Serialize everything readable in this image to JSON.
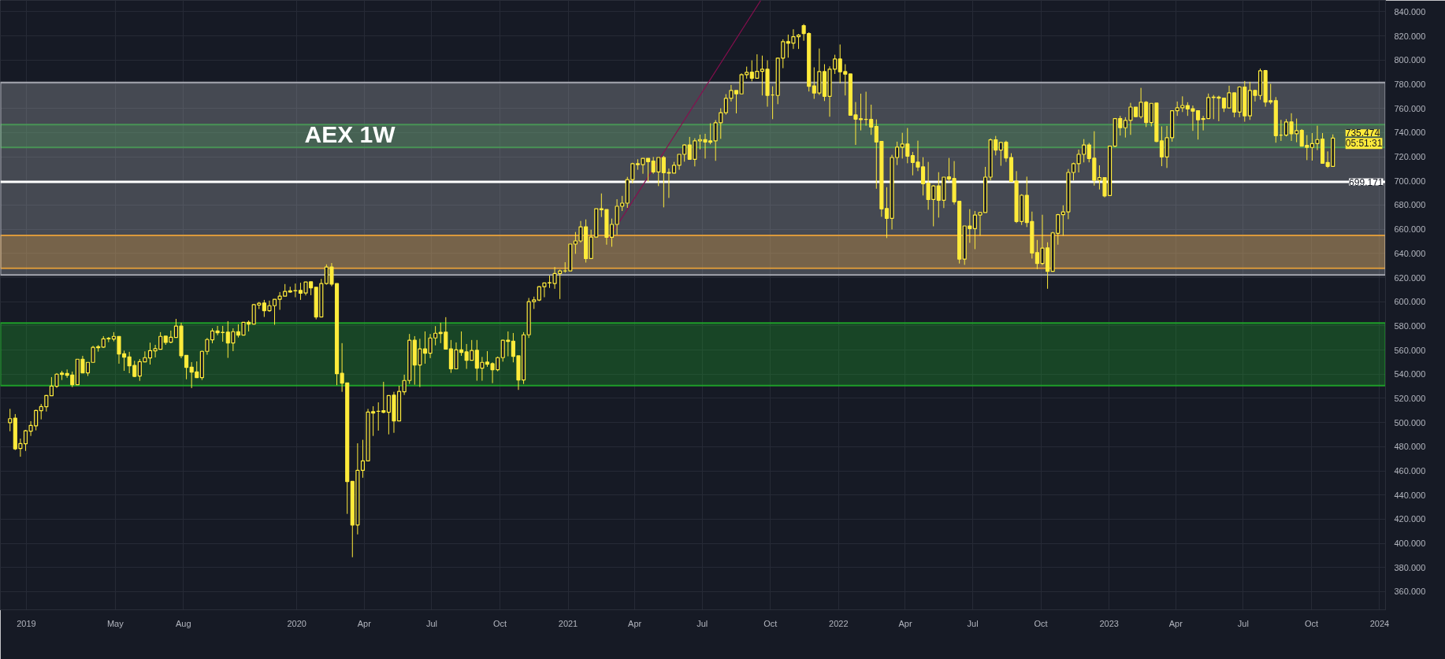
{
  "chart_data": {
    "type": "candlestick",
    "title": "AEX 1W",
    "color": "#ffeb3b",
    "grid": true,
    "xlim": [
      "2018-11-27",
      "2024-01-09"
    ],
    "ylim": [
      345,
      849.4
    ],
    "xticks": [
      {
        "value": "2019-01-01",
        "label": "2019"
      },
      {
        "value": "2019-05-01",
        "label": "May"
      },
      {
        "value": "2019-08-01",
        "label": "Aug"
      },
      {
        "value": "2020-01-01",
        "label": "2020"
      },
      {
        "value": "2020-04-01",
        "label": "Apr"
      },
      {
        "value": "2020-07-01",
        "label": "Jul"
      },
      {
        "value": "2020-10-01",
        "label": "Oct"
      },
      {
        "value": "2021-01-01",
        "label": "2021"
      },
      {
        "value": "2021-04-01",
        "label": "Apr"
      },
      {
        "value": "2021-07-01",
        "label": "Jul"
      },
      {
        "value": "2021-10-01",
        "label": "Oct"
      },
      {
        "value": "2022-01-01",
        "label": "2022"
      },
      {
        "value": "2022-04-01",
        "label": "Apr"
      },
      {
        "value": "2022-07-01",
        "label": "Jul"
      },
      {
        "value": "2022-10-01",
        "label": "Oct"
      },
      {
        "value": "2023-01-01",
        "label": "2023"
      },
      {
        "value": "2023-04-01",
        "label": "Apr"
      },
      {
        "value": "2023-07-01",
        "label": "Jul"
      },
      {
        "value": "2023-10-01",
        "label": "Oct"
      },
      {
        "value": "2024-01-01",
        "label": "2024"
      }
    ],
    "yticks": [
      {
        "value": 360,
        "label": "360.000"
      },
      {
        "value": 380,
        "label": "380.000"
      },
      {
        "value": 400,
        "label": "400.000"
      },
      {
        "value": 420,
        "label": "420.000"
      },
      {
        "value": 440,
        "label": "440.000"
      },
      {
        "value": 460,
        "label": "460.000"
      },
      {
        "value": 480,
        "label": "480.000"
      },
      {
        "value": 500,
        "label": "500.000"
      },
      {
        "value": 520,
        "label": "520.000"
      },
      {
        "value": 540,
        "label": "540.000"
      },
      {
        "value": 560,
        "label": "560.000"
      },
      {
        "value": 580,
        "label": "580.000"
      },
      {
        "value": 600,
        "label": "600.000"
      },
      {
        "value": 620,
        "label": "620.000"
      },
      {
        "value": 640,
        "label": "640.000"
      },
      {
        "value": 660,
        "label": "660.000"
      },
      {
        "value": 680,
        "label": "680.000"
      },
      {
        "value": 700,
        "label": "700.000"
      },
      {
        "value": 720,
        "label": "720.000"
      },
      {
        "value": 740,
        "label": "740.000"
      },
      {
        "value": 760,
        "label": "760.000"
      },
      {
        "value": 780,
        "label": "780.000"
      },
      {
        "value": 800,
        "label": "800.000"
      },
      {
        "value": 820,
        "label": "820.000"
      },
      {
        "value": 840,
        "label": "840.000"
      }
    ],
    "x": [
      "2018-12-10",
      "2018-12-17",
      "2018-12-24",
      "2018-12-31",
      "2019-01-07",
      "2019-01-14",
      "2019-01-21",
      "2019-01-28",
      "2019-02-04",
      "2019-02-11",
      "2019-02-18",
      "2019-02-25",
      "2019-03-04",
      "2019-03-11",
      "2019-03-18",
      "2019-03-25",
      "2019-04-01",
      "2019-04-08",
      "2019-04-15",
      "2019-04-22",
      "2019-04-29",
      "2019-05-06",
      "2019-05-13",
      "2019-05-20",
      "2019-05-27",
      "2019-06-03",
      "2019-06-10",
      "2019-06-17",
      "2019-06-24",
      "2019-07-01",
      "2019-07-08",
      "2019-07-15",
      "2019-07-22",
      "2019-07-29",
      "2019-08-05",
      "2019-08-12",
      "2019-08-19",
      "2019-08-26",
      "2019-09-02",
      "2019-09-09",
      "2019-09-16",
      "2019-09-23",
      "2019-09-30",
      "2019-10-07",
      "2019-10-14",
      "2019-10-21",
      "2019-10-28",
      "2019-11-04",
      "2019-11-11",
      "2019-11-18",
      "2019-11-25",
      "2019-12-02",
      "2019-12-09",
      "2019-12-16",
      "2019-12-23",
      "2019-12-30",
      "2020-01-06",
      "2020-01-13",
      "2020-01-20",
      "2020-01-27",
      "2020-02-03",
      "2020-02-10",
      "2020-02-17",
      "2020-02-24",
      "2020-03-02",
      "2020-03-09",
      "2020-03-16",
      "2020-03-23",
      "2020-03-30",
      "2020-04-06",
      "2020-04-13",
      "2020-04-20",
      "2020-04-27",
      "2020-05-04",
      "2020-05-11",
      "2020-05-18",
      "2020-05-25",
      "2020-06-01",
      "2020-06-08",
      "2020-06-15",
      "2020-06-22",
      "2020-06-29",
      "2020-07-06",
      "2020-07-13",
      "2020-07-20",
      "2020-07-27",
      "2020-08-03",
      "2020-08-10",
      "2020-08-17",
      "2020-08-24",
      "2020-08-31",
      "2020-09-07",
      "2020-09-14",
      "2020-09-21",
      "2020-09-28",
      "2020-10-05",
      "2020-10-12",
      "2020-10-19",
      "2020-10-26",
      "2020-11-02",
      "2020-11-09",
      "2020-11-16",
      "2020-11-23",
      "2020-11-30",
      "2020-12-07",
      "2020-12-14",
      "2020-12-21",
      "2020-12-28",
      "2021-01-04",
      "2021-01-11",
      "2021-01-18",
      "2021-01-25",
      "2021-02-01",
      "2021-02-08",
      "2021-02-15",
      "2021-02-22",
      "2021-03-01",
      "2021-03-08",
      "2021-03-15",
      "2021-03-22",
      "2021-03-29",
      "2021-04-05",
      "2021-04-12",
      "2021-04-19",
      "2021-04-26",
      "2021-05-03",
      "2021-05-10",
      "2021-05-17",
      "2021-05-24",
      "2021-05-31",
      "2021-06-07",
      "2021-06-14",
      "2021-06-21",
      "2021-06-28",
      "2021-07-05",
      "2021-07-12",
      "2021-07-19",
      "2021-07-26",
      "2021-08-02",
      "2021-08-09",
      "2021-08-16",
      "2021-08-23",
      "2021-08-30",
      "2021-09-06",
      "2021-09-13",
      "2021-09-20",
      "2021-09-27",
      "2021-10-04",
      "2021-10-11",
      "2021-10-18",
      "2021-10-25",
      "2021-11-01",
      "2021-11-08",
      "2021-11-15",
      "2021-11-22",
      "2021-11-29",
      "2021-12-06",
      "2021-12-13",
      "2021-12-20",
      "2021-12-27",
      "2022-01-03",
      "2022-01-10",
      "2022-01-17",
      "2022-01-24",
      "2022-01-31",
      "2022-02-07",
      "2022-02-14",
      "2022-02-21",
      "2022-02-28",
      "2022-03-07",
      "2022-03-14",
      "2022-03-21",
      "2022-03-28",
      "2022-04-04",
      "2022-04-11",
      "2022-04-18",
      "2022-04-25",
      "2022-05-02",
      "2022-05-09",
      "2022-05-16",
      "2022-05-23",
      "2022-05-30",
      "2022-06-06",
      "2022-06-13",
      "2022-06-20",
      "2022-06-27",
      "2022-07-04",
      "2022-07-11",
      "2022-07-18",
      "2022-07-25",
      "2022-08-01",
      "2022-08-08",
      "2022-08-15",
      "2022-08-22",
      "2022-08-29",
      "2022-09-05",
      "2022-09-12",
      "2022-09-19",
      "2022-09-26",
      "2022-10-03",
      "2022-10-10",
      "2022-10-17",
      "2022-10-24",
      "2022-10-31",
      "2022-11-07",
      "2022-11-14",
      "2022-11-21",
      "2022-11-28",
      "2022-12-05",
      "2022-12-12",
      "2022-12-19",
      "2022-12-26",
      "2023-01-02",
      "2023-01-09",
      "2023-01-16",
      "2023-01-23",
      "2023-01-30",
      "2023-02-06",
      "2023-02-13",
      "2023-02-20",
      "2023-02-27",
      "2023-03-06",
      "2023-03-13",
      "2023-03-20",
      "2023-03-27",
      "2023-04-03",
      "2023-04-10",
      "2023-04-17",
      "2023-04-24",
      "2023-05-01",
      "2023-05-08",
      "2023-05-15",
      "2023-05-22",
      "2023-05-29",
      "2023-06-05",
      "2023-06-12",
      "2023-06-19",
      "2023-06-26",
      "2023-07-03",
      "2023-07-10",
      "2023-07-17",
      "2023-07-24",
      "2023-07-31",
      "2023-08-07",
      "2023-08-14",
      "2023-08-21",
      "2023-08-28",
      "2023-09-04",
      "2023-09-11",
      "2023-09-18",
      "2023-09-25",
      "2023-10-02",
      "2023-10-09",
      "2023-10-16",
      "2023-10-23",
      "2023-10-30"
    ],
    "ohlc": [
      [
        499.8,
        511.3,
        492.8,
        503.2
      ],
      [
        503.7,
        507,
        477.2,
        478.2
      ],
      [
        478.5,
        486.7,
        471.7,
        482.6
      ],
      [
        482.4,
        493.9,
        476.5,
        493.2
      ],
      [
        492.8,
        501.1,
        488.9,
        497.6
      ],
      [
        497.2,
        510.6,
        493.5,
        510
      ],
      [
        509.8,
        515.4,
        502.6,
        513.2
      ],
      [
        513,
        522.8,
        509.1,
        522.4
      ],
      [
        522.2,
        537.6,
        522.2,
        530.2
      ],
      [
        530,
        540.9,
        528.7,
        540
      ],
      [
        540.9,
        542.8,
        535.2,
        539.8
      ],
      [
        540.6,
        543.9,
        537,
        539.1
      ],
      [
        539.3,
        542.2,
        529.3,
        531.3
      ],
      [
        531.3,
        552.4,
        531.3,
        552.4
      ],
      [
        552.4,
        555.2,
        541.1,
        541.1
      ],
      [
        541.1,
        549.8,
        538.5,
        549.8
      ],
      [
        549.8,
        563.5,
        549.8,
        562.2
      ],
      [
        562.8,
        564.1,
        558.7,
        561.9
      ],
      [
        562.4,
        571.5,
        561.7,
        569.3
      ],
      [
        569.7,
        570.8,
        566.5,
        569.3
      ],
      [
        569.1,
        574.8,
        567.2,
        571.3
      ],
      [
        571.3,
        571.3,
        548.7,
        556.7
      ],
      [
        556.9,
        559.5,
        542.8,
        554.1
      ],
      [
        554.3,
        558.5,
        540.8,
        546.9
      ],
      [
        547.2,
        551.1,
        537.6,
        538.2
      ],
      [
        538.5,
        552.6,
        534.5,
        550.4
      ],
      [
        550.2,
        558.9,
        550.2,
        553.7
      ],
      [
        553.5,
        566.1,
        548,
        559.5
      ],
      [
        559.3,
        564.3,
        553.9,
        561.1
      ],
      [
        560.6,
        574.8,
        560.6,
        571.3
      ],
      [
        571.5,
        571.5,
        564.3,
        566.3
      ],
      [
        566.5,
        576.1,
        565.6,
        570.6
      ],
      [
        570.4,
        585.8,
        570.4,
        579.8
      ],
      [
        579.8,
        582.6,
        553.2,
        555.2
      ],
      [
        555.6,
        555.6,
        535.8,
        545.6
      ],
      [
        545.8,
        550,
        528.5,
        541.7
      ],
      [
        541.9,
        550.6,
        537.2,
        537.2
      ],
      [
        537.2,
        559.5,
        535.2,
        558.9
      ],
      [
        558.9,
        570,
        556.1,
        568.7
      ],
      [
        568.5,
        578,
        565.6,
        575.8
      ],
      [
        575.8,
        580,
        572.2,
        574.3
      ],
      [
        574.7,
        580,
        566.9,
        574.5
      ],
      [
        574.8,
        583.9,
        553.5,
        565.9
      ],
      [
        565.9,
        578,
        559.1,
        575.2
      ],
      [
        575.2,
        581.3,
        570.4,
        572.4
      ],
      [
        572.4,
        583,
        572.4,
        583
      ],
      [
        583,
        584.5,
        575.4,
        581.5
      ],
      [
        581.5,
        598.2,
        581.5,
        597.6
      ],
      [
        597.2,
        599.8,
        593.9,
        598.7
      ],
      [
        598.9,
        601.5,
        587.4,
        592.6
      ],
      [
        592.6,
        600.9,
        591.6,
        596.7
      ],
      [
        596.7,
        602,
        580.9,
        602
      ],
      [
        602,
        608,
        593.3,
        604.6
      ],
      [
        604.6,
        614.6,
        604.6,
        608.5
      ],
      [
        609.1,
        612.4,
        607.4,
        608
      ],
      [
        609.2,
        615,
        603.7,
        609
      ],
      [
        609.4,
        615.7,
        601.5,
        607
      ],
      [
        607.2,
        616.3,
        605.2,
        616.3
      ],
      [
        616.5,
        616.5,
        605.4,
        611.5
      ],
      [
        612,
        612,
        585.4,
        587.4
      ],
      [
        587.4,
        618.9,
        587.4,
        615
      ],
      [
        615,
        630.9,
        614.1,
        628.7
      ],
      [
        628.7,
        632,
        612.8,
        614.6
      ],
      [
        615,
        615,
        530.9,
        540.4
      ],
      [
        540.7,
        565.7,
        525.4,
        532.6
      ],
      [
        532.8,
        532.8,
        424.4,
        451.1
      ],
      [
        451.3,
        451.3,
        388.5,
        415.2
      ],
      [
        415.2,
        482.8,
        407.4,
        460.4
      ],
      [
        460.4,
        485.7,
        454.3,
        468.3
      ],
      [
        468.3,
        511.3,
        468.3,
        508.7
      ],
      [
        509,
        513.5,
        488.9,
        507.8
      ],
      [
        509.4,
        516.7,
        493.3,
        509.3
      ],
      [
        509.8,
        533.7,
        507.6,
        508.5
      ],
      [
        508.5,
        522.4,
        490.2,
        522.4
      ],
      [
        522.6,
        525.4,
        491.5,
        501.3
      ],
      [
        501.3,
        530.4,
        501.3,
        525.7
      ],
      [
        525.4,
        539.6,
        522.8,
        534.8
      ],
      [
        534.8,
        573.3,
        532,
        568.1
      ],
      [
        568.1,
        571.5,
        531.3,
        547.6
      ],
      [
        547.6,
        569.3,
        529.4,
        560.9
      ],
      [
        560.9,
        575.4,
        548.7,
        557.4
      ],
      [
        557.4,
        573.3,
        553.3,
        570
      ],
      [
        570,
        579.8,
        563.9,
        573.9
      ],
      [
        574.6,
        582.6,
        565.7,
        573.7
      ],
      [
        574.8,
        587.2,
        560.7,
        560.7
      ],
      [
        560.9,
        568.3,
        541.1,
        544.4
      ],
      [
        544.4,
        566.3,
        544.4,
        560.2
      ],
      [
        560.2,
        575.4,
        555.2,
        558
      ],
      [
        558.5,
        565,
        544.4,
        551.5
      ],
      [
        551.5,
        568.3,
        551.5,
        559.6
      ],
      [
        559.8,
        568.3,
        534.6,
        545
      ],
      [
        545,
        554.3,
        534.6,
        549.8
      ],
      [
        550,
        559.1,
        546.1,
        548.3
      ],
      [
        548.7,
        549.8,
        532.6,
        543.7
      ],
      [
        543.7,
        554.6,
        542.4,
        553.7
      ],
      [
        553.7,
        568.5,
        550.4,
        568.1
      ],
      [
        568.1,
        575.4,
        554.8,
        567.2
      ],
      [
        567.4,
        574.1,
        549.8,
        554.8
      ],
      [
        555.2,
        555.2,
        527,
        535.2
      ],
      [
        535.2,
        574.8,
        531.9,
        572.6
      ],
      [
        572.6,
        603.1,
        570,
        600
      ],
      [
        600,
        604.2,
        594,
        601.5
      ],
      [
        601.4,
        612.9,
        600.5,
        612.4
      ],
      [
        612.4,
        615.5,
        603.7,
        615.5
      ],
      [
        615.7,
        621.6,
        611.4,
        615.5
      ],
      [
        615.1,
        628.7,
        610.7,
        623.3
      ],
      [
        623.3,
        626.6,
        602.2,
        625.5
      ],
      [
        625.5,
        632.7,
        624,
        625.4
      ],
      [
        625.5,
        647.7,
        625.5,
        647.7
      ],
      [
        647.7,
        657.7,
        639.6,
        650.3
      ],
      [
        650.3,
        666.8,
        648.9,
        662
      ],
      [
        662,
        668.1,
        632.4,
        635.7
      ],
      [
        635.7,
        659.6,
        635.7,
        653.5
      ],
      [
        653.5,
        677,
        653.5,
        677
      ],
      [
        677,
        689.6,
        670.1,
        676.1
      ],
      [
        676.3,
        676.3,
        647.2,
        653.3
      ],
      [
        653.3,
        668.8,
        645.5,
        664
      ],
      [
        664,
        684.8,
        655.3,
        679
      ],
      [
        679,
        687.6,
        675.1,
        681.6
      ],
      [
        681.6,
        703.3,
        677.7,
        701.1
      ],
      [
        701.1,
        715,
        697.9,
        714.2
      ],
      [
        714.2,
        717.9,
        709.2,
        713.5
      ],
      [
        713.5,
        718.7,
        705.9,
        718.7
      ],
      [
        718.7,
        718.7,
        699.4,
        715.9
      ],
      [
        716.4,
        719.8,
        705.9,
        707.4
      ],
      [
        707.4,
        719.4,
        695.7,
        719.4
      ],
      [
        719.4,
        720.7,
        678.1,
        706.8
      ],
      [
        707,
        710.3,
        685.9,
        706.4
      ],
      [
        706.4,
        715.7,
        706.4,
        712.9
      ],
      [
        712.9,
        722,
        709.2,
        722
      ],
      [
        722,
        730.3,
        715.9,
        729.8
      ],
      [
        729.8,
        736.4,
        717.9,
        717.9
      ],
      [
        717.9,
        735.3,
        712,
        733.1
      ],
      [
        733.1,
        738.3,
        726.1,
        734.2
      ],
      [
        734.2,
        739,
        718.5,
        732.2
      ],
      [
        733.1,
        747.7,
        730.3,
        732
      ],
      [
        733.1,
        750.3,
        716.6,
        748.1
      ],
      [
        748.1,
        760.1,
        734.8,
        756.4
      ],
      [
        756.4,
        771.8,
        754.8,
        768.3
      ],
      [
        768.3,
        779.4,
        765.7,
        774.8
      ],
      [
        774.8,
        774.8,
        755.9,
        772
      ],
      [
        772,
        789,
        772,
        787.9
      ],
      [
        787.9,
        794.6,
        784.6,
        789.8
      ],
      [
        790,
        799.8,
        782.4,
        785
      ],
      [
        785,
        804.8,
        785,
        790.7
      ],
      [
        790.7,
        803.7,
        770.7,
        792.4
      ],
      [
        792.4,
        799.8,
        761.4,
        770.7
      ],
      [
        771.1,
        778.3,
        751.1,
        771.1
      ],
      [
        770.7,
        802.2,
        763.5,
        801.6
      ],
      [
        801.6,
        817.2,
        793.3,
        815.3
      ],
      [
        815.3,
        821.1,
        802,
        814
      ],
      [
        814,
        825.5,
        809.2,
        819.4
      ],
      [
        819.4,
        821.6,
        809.2,
        820.7
      ],
      [
        828.5,
        829.8,
        816,
        822
      ],
      [
        822,
        823,
        774,
        778.3
      ],
      [
        778.7,
        794,
        767.9,
        772.7
      ],
      [
        772.7,
        809.6,
        771.1,
        790.5
      ],
      [
        790.5,
        796.6,
        766.1,
        770
      ],
      [
        770,
        794.8,
        753.1,
        792.5
      ],
      [
        792.5,
        804.4,
        788.5,
        800.9
      ],
      [
        800.9,
        812.9,
        780.9,
        790.3
      ],
      [
        790.5,
        796.6,
        770.7,
        788.3
      ],
      [
        788.5,
        788.5,
        754.4,
        754.4
      ],
      [
        754.6,
        765.3,
        729.8,
        751.1
      ],
      [
        751.5,
        772.2,
        741.8,
        750.7
      ],
      [
        751,
        773.8,
        745.7,
        750.9
      ],
      [
        750.9,
        763.1,
        738.1,
        744.6
      ],
      [
        745.1,
        750.9,
        693.5,
        732.2
      ],
      [
        732.7,
        732.7,
        670.3,
        676.8
      ],
      [
        677.2,
        694.8,
        652.7,
        669
      ],
      [
        669,
        721.6,
        659.8,
        719.4
      ],
      [
        719.4,
        732.5,
        713.1,
        727.9
      ],
      [
        727.9,
        739.8,
        718.5,
        730.5
      ],
      [
        730.5,
        743.8,
        714.6,
        720.5
      ],
      [
        720.9,
        724,
        704.6,
        715.3
      ],
      [
        715.5,
        733.3,
        708.1,
        711.4
      ],
      [
        711.6,
        719.6,
        687.9,
        697.7
      ],
      [
        698.1,
        715.7,
        676.1,
        684.6
      ],
      [
        684.6,
        696.6,
        662.4,
        695.9
      ],
      [
        695.9,
        707.2,
        669.6,
        684
      ],
      [
        684,
        703.1,
        677.5,
        703.1
      ],
      [
        703.3,
        719,
        699.4,
        701.6
      ],
      [
        702,
        716.4,
        680.5,
        682.7
      ],
      [
        683.1,
        683.1,
        631.6,
        635.3
      ],
      [
        635.3,
        662.7,
        630.5,
        662.7
      ],
      [
        662.7,
        676.6,
        648.7,
        660.5
      ],
      [
        660.5,
        675.1,
        643.5,
        671.8
      ],
      [
        671.8,
        673.8,
        654.6,
        673.8
      ],
      [
        673.8,
        711.6,
        673.8,
        703.1
      ],
      [
        703.1,
        735.1,
        700.5,
        734
      ],
      [
        734,
        737.2,
        721.1,
        725.5
      ],
      [
        725.5,
        731.8,
        712.5,
        731.8
      ],
      [
        732,
        733.3,
        715.7,
        719
      ],
      [
        719.4,
        722.9,
        699.4,
        699.4
      ],
      [
        699.8,
        708.1,
        665.1,
        666.4
      ],
      [
        666.4,
        689,
        663.5,
        688.1
      ],
      [
        688.1,
        703.5,
        661.8,
        665.5
      ],
      [
        666.4,
        674.6,
        635.7,
        640.3
      ],
      [
        640.7,
        651.1,
        627,
        631.6
      ],
      [
        631.6,
        672,
        630.3,
        644.4
      ],
      [
        644.6,
        649.2,
        610.7,
        625.1
      ],
      [
        625.1,
        657.9,
        625.1,
        657
      ],
      [
        656.6,
        672.7,
        647.2,
        672
      ],
      [
        672,
        679.8,
        654.6,
        674.4
      ],
      [
        674.4,
        709.8,
        668.3,
        707
      ],
      [
        707,
        715.1,
        700.5,
        714.2
      ],
      [
        714.2,
        725.9,
        707,
        722
      ],
      [
        722,
        734.6,
        715.3,
        729.8
      ],
      [
        729.8,
        731.4,
        715.3,
        718.5
      ],
      [
        718.8,
        741.1,
        696.1,
        700.5
      ],
      [
        700.5,
        712.9,
        692.9,
        702.7
      ],
      [
        702.7,
        702.7,
        686.4,
        687.5
      ],
      [
        687.9,
        729.2,
        687.9,
        728.8
      ],
      [
        728.8,
        752,
        728.1,
        751.6
      ],
      [
        751.6,
        753.8,
        737.5,
        744
      ],
      [
        744,
        752.7,
        735.9,
        750.1
      ],
      [
        750.1,
        764.6,
        738.1,
        761.1
      ],
      [
        761.1,
        761.1,
        752.7,
        753.1
      ],
      [
        753.1,
        777,
        751.6,
        765.1
      ],
      [
        765.1,
        766.1,
        744.6,
        748.3
      ],
      [
        748.3,
        764.2,
        745.1,
        764.2
      ],
      [
        764.4,
        764.4,
        732,
        732.7
      ],
      [
        733.1,
        745.1,
        712.2,
        719.8
      ],
      [
        719.8,
        745.5,
        710.7,
        735.7
      ],
      [
        735.7,
        758.1,
        732.5,
        758.1
      ],
      [
        758.1,
        765.7,
        753.8,
        760.5
      ],
      [
        760.5,
        770,
        757,
        762.4
      ],
      [
        762.4,
        765.1,
        753.8,
        759.6
      ],
      [
        759.8,
        762.4,
        741.4,
        757.7
      ],
      [
        758.1,
        758.1,
        734.2,
        750.5
      ],
      [
        751.6,
        753.8,
        741.8,
        750.9
      ],
      [
        751.6,
        772.3,
        751.6,
        769
      ],
      [
        769.4,
        771.1,
        751.1,
        769
      ],
      [
        769.4,
        770.5,
        749.4,
        768.5
      ],
      [
        768.5,
        768.5,
        757,
        760.3
      ],
      [
        760.3,
        778.8,
        760.3,
        772.9
      ],
      [
        772.9,
        772.9,
        752.7,
        757
      ],
      [
        757,
        778.3,
        752.7,
        777.7
      ],
      [
        777.7,
        782.7,
        749,
        753.8
      ],
      [
        753.8,
        782,
        750.5,
        774.8
      ],
      [
        774.8,
        775.5,
        765.7,
        770.7
      ],
      [
        770.7,
        792.9,
        767.2,
        791.1
      ],
      [
        791.3,
        791.8,
        761.4,
        765.3
      ],
      [
        766.4,
        780.3,
        763.5,
        765.3
      ],
      [
        766.4,
        769.4,
        731.6,
        737.4
      ],
      [
        737.9,
        750.5,
        733.1,
        737.9
      ],
      [
        737.9,
        751.1,
        736.8,
        748.8
      ],
      [
        748.8,
        756,
        733.1,
        739
      ],
      [
        739,
        751.6,
        732,
        741.6
      ],
      [
        741.8,
        742.9,
        728.8,
        728.8
      ],
      [
        729.4,
        737.9,
        717.2,
        727.7
      ],
      [
        727.7,
        739.6,
        716.8,
        730.9
      ],
      [
        730.9,
        745.7,
        725.5,
        734.2
      ],
      [
        734.6,
        739.6,
        714.6,
        714.6
      ],
      [
        715.3,
        724.4,
        710.7,
        712
      ],
      [
        712,
        738.5,
        712,
        735.474
      ]
    ],
    "series": [
      {
        "type": "line",
        "color": "#880e4f",
        "x": [
          "2021-02-25",
          "2021-09-18"
        ],
        "values": [
          652.4,
          849.4
        ]
      }
    ],
    "ref_lines": [
      {
        "axis": "y",
        "value": 699.171,
        "label": "699.171",
        "color": "#ffffff"
      }
    ],
    "bands": [
      {
        "axis": "y",
        "from": 530.6,
        "to": 582.4,
        "color": "#1faa2a"
      },
      {
        "axis": "y",
        "from": 727.7,
        "to": 746.6,
        "color": "#1b8f2a"
      },
      {
        "axis": "y",
        "from": 627.7,
        "to": 654.8,
        "color": "#ff9800"
      },
      {
        "axis": "y",
        "from": 622.2,
        "to": 781.4,
        "color": "#b2b5be"
      }
    ],
    "annotations": [
      {
        "text": "735.474",
        "x": "2023-10-30",
        "y": 735.474
      },
      "05:51:31"
    ]
  }
}
